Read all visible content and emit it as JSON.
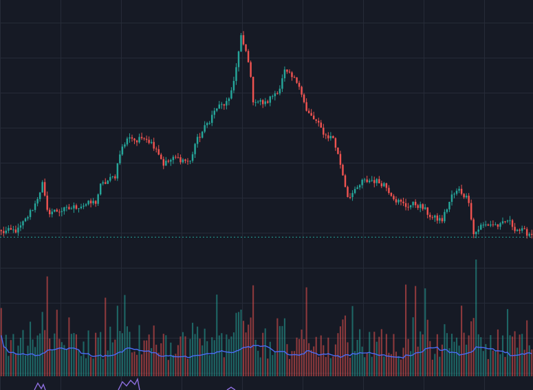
{
  "theme": {
    "background": "#161a25",
    "grid": "#262b38",
    "up_color": "#26a69a",
    "down_color": "#ef5350",
    "volume_ma_color": "#4a6cf7",
    "indicator_color": "#8e6fe0",
    "reference_line_color": "#26a69a"
  },
  "chart_data": [
    {
      "type": "candlestick",
      "title": "",
      "grid": true,
      "reference_price": 95.5,
      "anchors": [
        [
          0,
          98
        ],
        [
          7,
          99
        ],
        [
          10,
          104
        ],
        [
          14,
          112
        ],
        [
          17,
          122
        ],
        [
          19,
          108
        ],
        [
          26,
          109
        ],
        [
          32,
          111
        ],
        [
          39,
          113
        ],
        [
          41,
          121
        ],
        [
          47,
          126
        ],
        [
          49,
          138
        ],
        [
          53,
          146
        ],
        [
          56,
          143
        ],
        [
          59,
          146
        ],
        [
          64,
          140
        ],
        [
          67,
          132
        ],
        [
          72,
          135
        ],
        [
          78,
          133
        ],
        [
          80,
          142
        ],
        [
          86,
          154
        ],
        [
          89,
          160
        ],
        [
          94,
          163
        ],
        [
          97,
          180
        ],
        [
          99,
          195
        ],
        [
          102,
          184
        ],
        [
          104,
          164
        ],
        [
          109,
          162
        ],
        [
          115,
          170
        ],
        [
          117,
          178
        ],
        [
          120,
          175
        ],
        [
          123,
          172
        ],
        [
          126,
          158
        ],
        [
          130,
          153
        ],
        [
          134,
          146
        ],
        [
          137,
          145
        ],
        [
          140,
          132
        ],
        [
          143,
          116
        ],
        [
          146,
          118
        ],
        [
          149,
          123
        ],
        [
          153,
          124
        ],
        [
          158,
          122
        ],
        [
          163,
          114
        ],
        [
          167,
          111
        ],
        [
          171,
          112
        ],
        [
          174,
          110
        ],
        [
          178,
          105
        ],
        [
          182,
          104
        ],
        [
          186,
          116
        ],
        [
          189,
          119
        ],
        [
          193,
          114
        ],
        [
          195,
          97
        ],
        [
          198,
          101
        ],
        [
          202,
          102
        ],
        [
          206,
          101
        ],
        [
          209,
          104
        ],
        [
          212,
          100
        ],
        [
          216,
          98
        ],
        [
          219,
          97
        ]
      ],
      "ohlc_count": 220,
      "price_range": [
        85,
        200
      ]
    },
    {
      "type": "bar",
      "title": "",
      "series": [
        {
          "values": "volume"
        },
        {
          "values": "volume_ma"
        }
      ]
    }
  ]
}
